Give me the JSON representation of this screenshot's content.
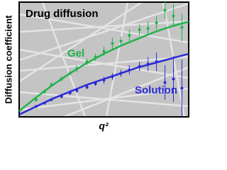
{
  "chart_data": {
    "type": "scatter",
    "title": "Drug diffusion",
    "x_label": "q²",
    "y_label": "Diffusion coefficient",
    "xlim": [
      0,
      1
    ],
    "ylim": [
      0,
      1
    ],
    "grid": false,
    "fit_x": [
      0,
      0.1,
      0.2,
      0.3,
      0.4,
      0.5,
      0.6,
      0.7,
      0.8,
      0.9,
      1
    ],
    "series": [
      {
        "name": "Gel",
        "color": "#22b24c",
        "x": [
          0.1,
          0.15,
          0.19,
          0.25,
          0.3,
          0.34,
          0.4,
          0.45,
          0.5,
          0.55,
          0.6,
          0.65,
          0.71,
          0.76,
          0.81,
          0.86,
          0.91,
          0.96
        ],
        "values": [
          0.15,
          0.22,
          0.28,
          0.33,
          0.38,
          0.42,
          0.48,
          0.52,
          0.57,
          0.64,
          0.66,
          0.71,
          0.76,
          0.77,
          0.82,
          0.93,
          0.88,
          0.78
        ],
        "errors": [
          0.02,
          0.02,
          0.02,
          0.02,
          0.02,
          0.03,
          0.03,
          0.03,
          0.04,
          0.05,
          0.04,
          0.05,
          0.05,
          0.06,
          0.06,
          0.08,
          0.1,
          0.12
        ],
        "fit_values": [
          0.05,
          0.17,
          0.28,
          0.38,
          0.47,
          0.55,
          0.62,
          0.68,
          0.74,
          0.79,
          0.83
        ]
      },
      {
        "name": "Solution",
        "color": "#2b2bd6",
        "x": [
          0.1,
          0.15,
          0.19,
          0.25,
          0.3,
          0.34,
          0.4,
          0.45,
          0.5,
          0.55,
          0.6,
          0.65,
          0.71,
          0.76,
          0.81,
          0.86,
          0.91,
          0.96
        ],
        "values": [
          0.09,
          0.12,
          0.15,
          0.18,
          0.21,
          0.23,
          0.26,
          0.29,
          0.32,
          0.35,
          0.38,
          0.41,
          0.44,
          0.46,
          0.48,
          0.3,
          0.33,
          0.25
        ],
        "errors": [
          0.01,
          0.01,
          0.01,
          0.02,
          0.02,
          0.02,
          0.02,
          0.02,
          0.03,
          0.03,
          0.03,
          0.04,
          0.04,
          0.06,
          0.08,
          0.15,
          0.2,
          0.25
        ],
        "fit_values": [
          0.02,
          0.09,
          0.16,
          0.22,
          0.28,
          0.33,
          0.38,
          0.43,
          0.47,
          0.51,
          0.55
        ]
      }
    ]
  }
}
